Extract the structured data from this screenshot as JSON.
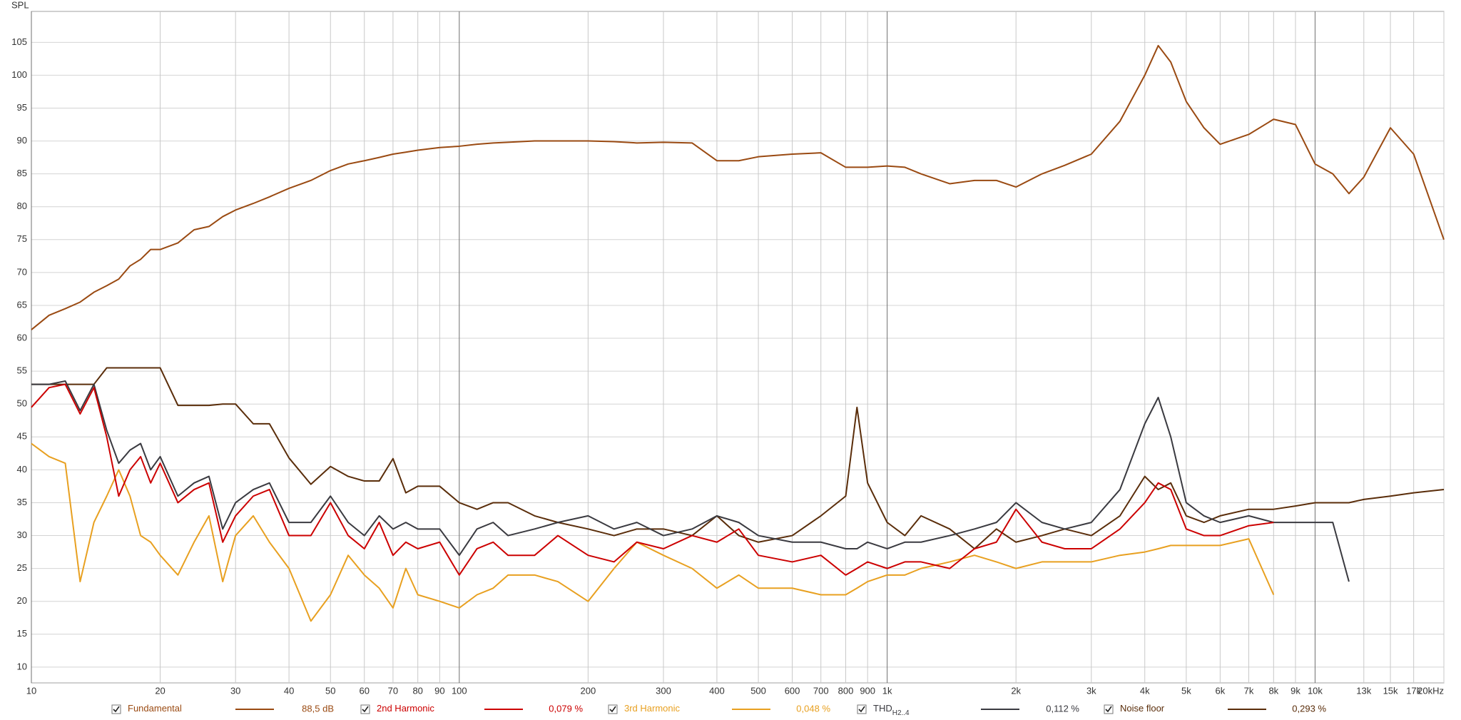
{
  "chart_data": {
    "type": "line",
    "y_axis_label": "SPL",
    "xscale": "log",
    "grid": true,
    "xlim": [
      10,
      20000
    ],
    "ylim": [
      7.6,
      109.7
    ],
    "yticks": [
      10,
      15,
      20,
      25,
      30,
      35,
      40,
      45,
      50,
      55,
      60,
      65,
      70,
      75,
      80,
      85,
      90,
      95,
      100,
      105
    ],
    "xticks": [
      10,
      20,
      30,
      40,
      50,
      60,
      70,
      80,
      90,
      100,
      200,
      300,
      400,
      500,
      600,
      700,
      800,
      900,
      {
        "value": 1000,
        "label": "1k"
      },
      {
        "value": 2000,
        "label": "2k"
      },
      {
        "value": 3000,
        "label": "3k"
      },
      {
        "value": 4000,
        "label": "4k"
      },
      {
        "value": 5000,
        "label": "5k"
      },
      {
        "value": 6000,
        "label": "6k"
      },
      {
        "value": 7000,
        "label": "7k"
      },
      {
        "value": 8000,
        "label": "8k"
      },
      {
        "value": 9000,
        "label": "9k"
      },
      {
        "value": 10000,
        "label": "10k"
      },
      {
        "value": 13000,
        "label": "13k"
      },
      {
        "value": 15000,
        "label": "15k"
      },
      {
        "value": 17000,
        "label": "17k"
      },
      {
        "value": 20000,
        "label": "20kHz"
      }
    ],
    "x": [
      10,
      11,
      12,
      13,
      14,
      15,
      16,
      17,
      18,
      19,
      20,
      22,
      24,
      26,
      28,
      30,
      33,
      36,
      40,
      45,
      50,
      55,
      60,
      65,
      70,
      75,
      80,
      90,
      100,
      110,
      120,
      130,
      150,
      170,
      200,
      230,
      260,
      300,
      350,
      400,
      450,
      500,
      600,
      700,
      800,
      850,
      900,
      1000,
      1100,
      1200,
      1400,
      1600,
      1800,
      2000,
      2300,
      2600,
      3000,
      3500,
      4000,
      4300,
      4600,
      5000,
      5500,
      6000,
      7000,
      8000,
      9000,
      10000,
      11000,
      12000,
      13000,
      15000,
      17000,
      20000
    ],
    "series": [
      {
        "name": "Fundamental",
        "legend_value": "88,5 dB",
        "color": "#9a4a12",
        "values": [
          61.3,
          63.5,
          64.5,
          65.5,
          67,
          68,
          69,
          71,
          72,
          73.5,
          73.5,
          74.5,
          76.5,
          77,
          78.5,
          79.5,
          80.5,
          81.5,
          82.8,
          84,
          85.5,
          86.5,
          87,
          87.5,
          88,
          88.3,
          88.6,
          89,
          89.2,
          89.5,
          89.7,
          89.8,
          90,
          90,
          90,
          89.9,
          89.7,
          89.8,
          89.7,
          87,
          87,
          87.6,
          88,
          88.2,
          86,
          86,
          86,
          86.2,
          86,
          85,
          83.5,
          84,
          84,
          83,
          85,
          86.3,
          88,
          93,
          100,
          104.5,
          102,
          96,
          92,
          89.5,
          91,
          93.3,
          92.5,
          86.5,
          85,
          82,
          84.5,
          92,
          88,
          75
        ]
      },
      {
        "name": "2nd Harmonic",
        "legend_value": "0,079 %",
        "color": "#cc0000",
        "values": [
          49.5,
          52.5,
          53,
          48.5,
          52.5,
          45,
          36,
          40,
          42,
          38,
          41,
          35,
          37,
          38,
          29,
          33,
          36,
          37,
          30,
          30,
          35,
          30,
          28,
          32,
          27,
          29,
          28,
          29,
          24,
          28,
          29,
          27,
          27,
          30,
          27,
          26,
          29,
          28,
          30,
          29,
          31,
          27,
          26,
          27,
          24,
          25,
          26,
          25,
          26,
          26,
          25,
          28,
          29,
          34,
          29,
          28,
          28,
          31,
          35,
          38,
          37,
          31,
          30,
          30,
          31.5,
          32,
          null,
          null,
          null,
          null,
          null,
          null,
          null,
          null
        ]
      },
      {
        "name": "3rd Harmonic",
        "legend_value": "0,048 %",
        "color": "#e8a020",
        "values": [
          44,
          42,
          41,
          23,
          32,
          36,
          40,
          36,
          30,
          29,
          27,
          24,
          29,
          33,
          23,
          30,
          33,
          29,
          25,
          17,
          21,
          27,
          24,
          22,
          19,
          25,
          21,
          20,
          19,
          21,
          22,
          24,
          24,
          23,
          20,
          25,
          29,
          27,
          25,
          22,
          24,
          22,
          22,
          21,
          21,
          22,
          23,
          24,
          24,
          25,
          26,
          27,
          26,
          25,
          26,
          26,
          26,
          27,
          27.5,
          28,
          28.5,
          28.5,
          28.5,
          28.5,
          29.5,
          21,
          null,
          null,
          null,
          null,
          null,
          null,
          null,
          null
        ]
      },
      {
        "name": "THD",
        "name_subscript": "H2..4",
        "legend_value": "0,112 %",
        "color": "#3a3a40",
        "values": [
          53,
          53,
          53.5,
          49,
          53,
          46,
          41,
          43,
          44,
          40,
          42,
          36,
          38,
          39,
          31,
          35,
          37,
          38,
          32,
          32,
          36,
          32,
          30,
          33,
          31,
          32,
          31,
          31,
          27,
          31,
          32,
          30,
          31,
          32,
          33,
          31,
          32,
          30,
          31,
          33,
          32,
          30,
          29,
          29,
          28,
          28,
          29,
          28,
          29,
          29,
          30,
          31,
          32,
          35,
          32,
          31,
          32,
          37,
          47,
          51,
          45,
          35,
          33,
          32,
          33,
          32,
          32,
          32,
          32,
          23,
          null,
          null,
          null,
          null
        ]
      },
      {
        "name": "Noise floor",
        "legend_value": "0,293 %",
        "color": "#5a2d0a",
        "values": [
          53,
          53,
          53,
          53,
          53,
          55.5,
          55.5,
          55.5,
          55.5,
          55.5,
          55.5,
          49.8,
          49.8,
          49.8,
          50,
          50,
          47,
          47,
          41.8,
          37.8,
          40.5,
          39,
          38.3,
          38.3,
          41.7,
          36.5,
          37.5,
          37.5,
          35,
          34,
          35,
          35,
          33,
          32,
          31,
          30,
          31,
          31,
          30,
          33,
          30,
          29,
          30,
          33,
          36,
          49.5,
          38,
          32,
          30,
          33,
          31,
          28,
          31,
          29,
          30,
          31,
          30,
          33,
          39,
          37,
          38,
          33,
          32,
          33,
          34,
          34,
          34.5,
          35,
          35,
          35,
          35.5,
          36,
          36.5,
          37
        ]
      }
    ]
  }
}
